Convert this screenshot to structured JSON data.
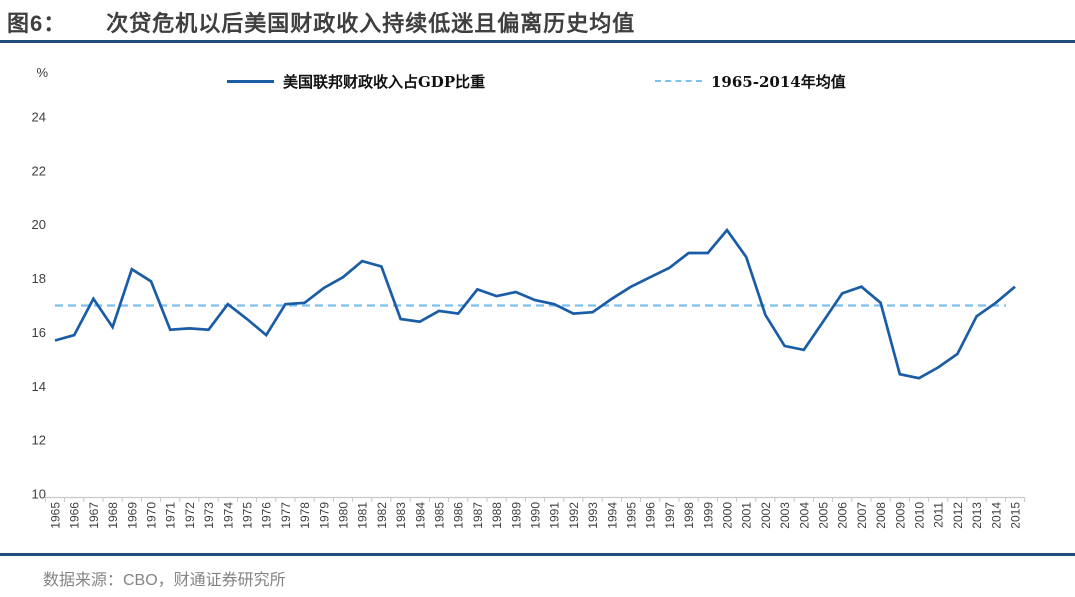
{
  "header": {
    "figure_label": "图6：",
    "title": "次贷危机以后美国财政收入持续低迷且偏离历史均值"
  },
  "footer": {
    "source": "数据来源：CBO，财通证券研究所"
  },
  "colors": {
    "series_line": "#1a5da6",
    "average_line": "#7cc0f0",
    "rule": "#1f4e79",
    "title_text": "#3f3f3f",
    "axis_line": "#c8c8c8",
    "tick_label": "#3f3f3f",
    "source_text": "#848484"
  },
  "chart_data": {
    "type": "line",
    "title": "次贷危机以后美国财政收入持续低迷且偏离历史均值",
    "ylabel": "%",
    "ylim": [
      10,
      24
    ],
    "yticks": [
      24,
      22,
      20,
      18,
      16,
      14,
      12,
      10
    ],
    "grid": false,
    "legend_position": "top",
    "categories": [
      "1965",
      "1966",
      "1967",
      "1968",
      "1969",
      "1970",
      "1971",
      "1972",
      "1973",
      "1974",
      "1975",
      "1976",
      "1977",
      "1978",
      "1979",
      "1980",
      "1981",
      "1982",
      "1983",
      "1984",
      "1985",
      "1986",
      "1987",
      "1988",
      "1989",
      "1990",
      "1991",
      "1992",
      "1993",
      "1994",
      "1995",
      "1996",
      "1997",
      "1998",
      "1999",
      "2000",
      "2001",
      "2002",
      "2003",
      "2004",
      "2005",
      "2006",
      "2007",
      "2008",
      "2009",
      "2010",
      "2011",
      "2012",
      "2013",
      "2014",
      "2015"
    ],
    "series": [
      {
        "name": "美国联邦财政收入占GDP比重",
        "style": "solid",
        "values": [
          15.7,
          15.9,
          17.25,
          16.2,
          18.35,
          17.9,
          16.1,
          16.15,
          16.1,
          17.05,
          16.5,
          15.9,
          17.05,
          17.1,
          17.65,
          18.05,
          18.65,
          18.45,
          16.5,
          16.4,
          16.8,
          16.7,
          17.6,
          17.35,
          17.5,
          17.2,
          17.05,
          16.7,
          16.75,
          17.25,
          17.7,
          18.05,
          18.4,
          18.95,
          18.95,
          19.8,
          18.8,
          16.65,
          15.5,
          15.35,
          16.4,
          17.45,
          17.7,
          17.1,
          14.45,
          14.3,
          14.7,
          15.2,
          16.6,
          17.1,
          17.7
        ]
      },
      {
        "name": "1965-2014年均值",
        "style": "dashed",
        "value": 17.0
      }
    ]
  }
}
